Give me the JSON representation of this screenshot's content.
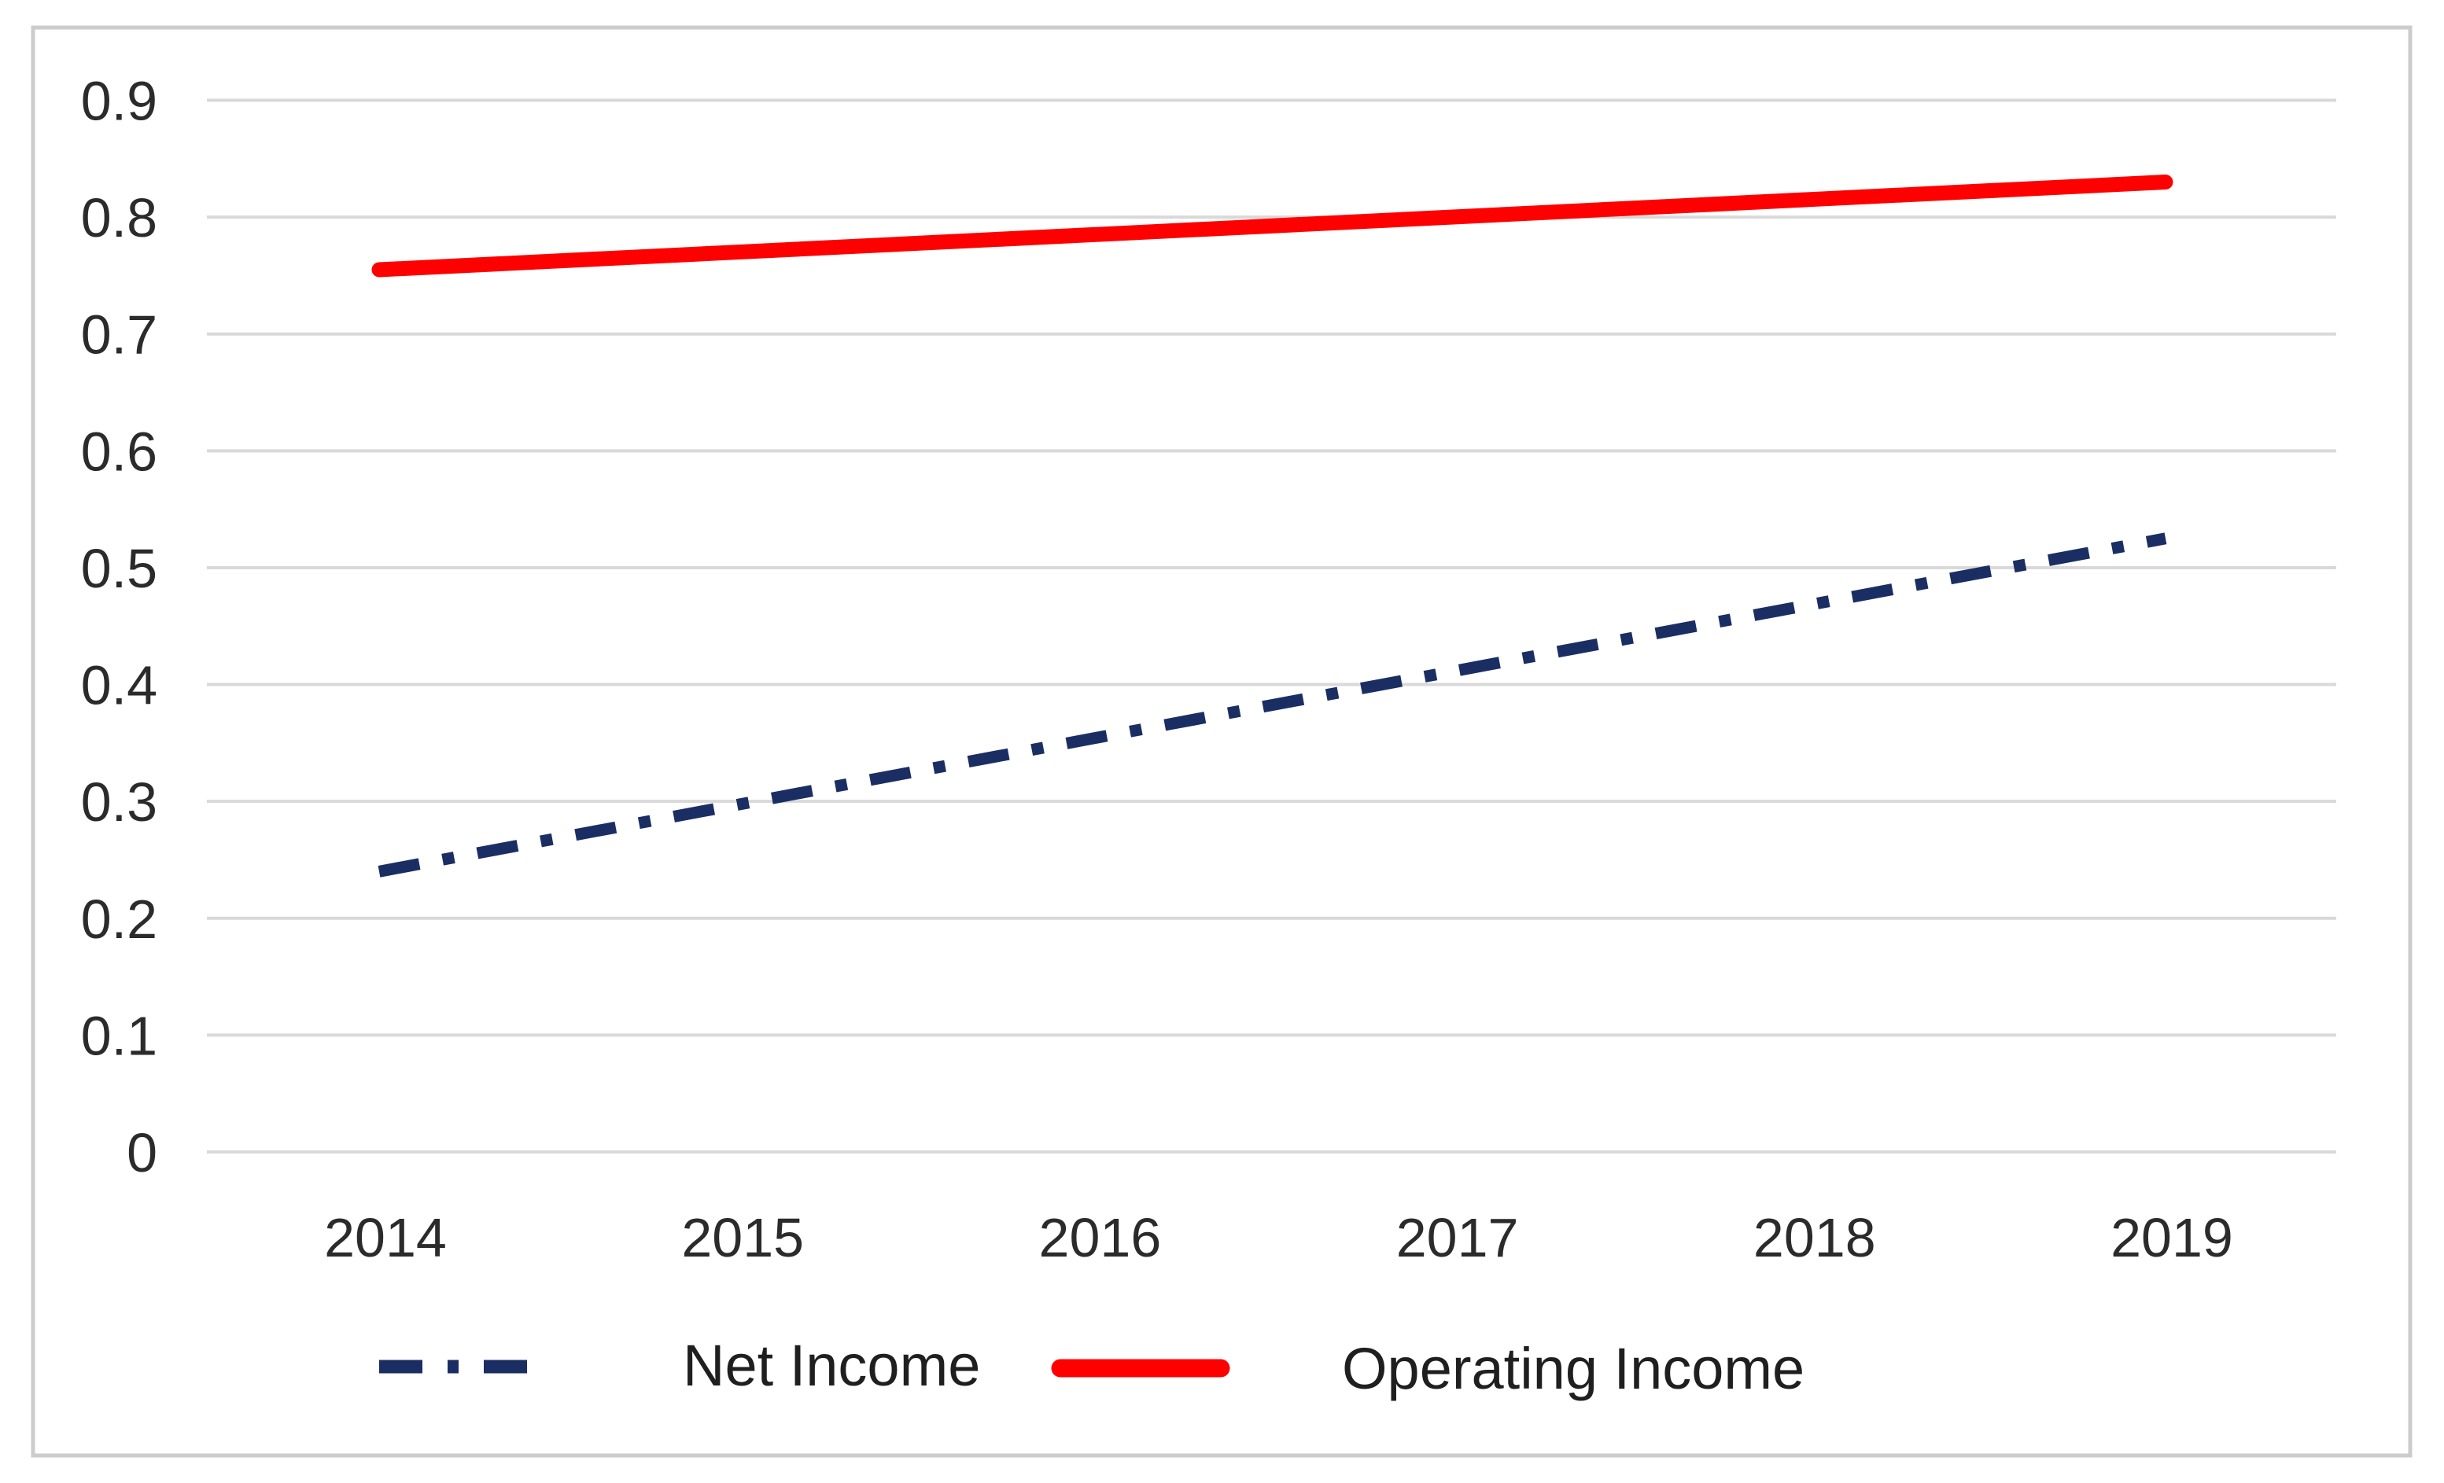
{
  "figure": {
    "background": "#ffffff",
    "border_color": "#cccccc"
  },
  "chart_data": {
    "type": "line",
    "title": "",
    "xlabel": "",
    "ylabel": "",
    "categories": [
      "2014",
      "2015",
      "2016",
      "2017",
      "2018",
      "2019"
    ],
    "series": [
      {
        "name": "Net Income",
        "color": "#1b2e63",
        "line_style": "dash-dot",
        "values": [
          0.24,
          0.297,
          0.354,
          0.411,
          0.468,
          0.525
        ]
      },
      {
        "name": "Operating Income",
        "color": "#fe0000",
        "line_style": "solid",
        "values": [
          0.755,
          0.77,
          0.785,
          0.8,
          0.815,
          0.83
        ]
      }
    ],
    "ylim": [
      0,
      0.9
    ],
    "y_tick_labels": [
      "0",
      "0.1",
      "0.2",
      "0.3",
      "0.4",
      "0.5",
      "0.6",
      "0.7",
      "0.8",
      "0.9"
    ],
    "grid": "horizontal",
    "gridline_color": "#d9d9d9",
    "axis_text_color": "#2b2b2b",
    "legend_position": "bottom"
  }
}
